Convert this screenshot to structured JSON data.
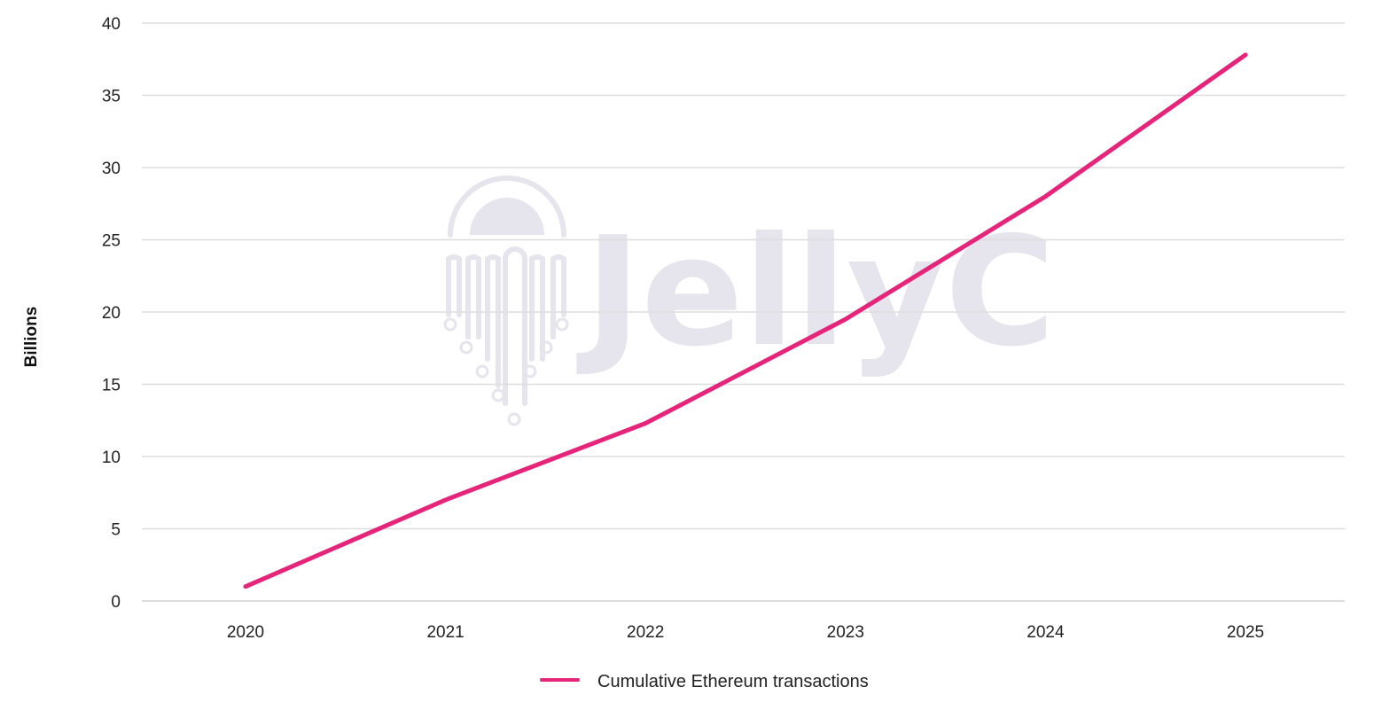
{
  "chart_data": {
    "type": "line",
    "x": [
      "2020",
      "2021",
      "2022",
      "2023",
      "2024",
      "2025"
    ],
    "series": [
      {
        "name": "Cumulative Ethereum transactions",
        "values": [
          1.0,
          7.0,
          12.3,
          19.5,
          28.0,
          37.8
        ],
        "color": "#e6257a"
      }
    ],
    "ylabel": "Billions",
    "ylim": [
      0,
      40
    ],
    "yticks": [
      0,
      5,
      10,
      15,
      20,
      25,
      30,
      35,
      40
    ],
    "grid": true,
    "legend_position": "bottom-center",
    "watermark": "JellyC",
    "watermark_color": "#e6e4ec",
    "gridline_color": "#dddddd"
  }
}
